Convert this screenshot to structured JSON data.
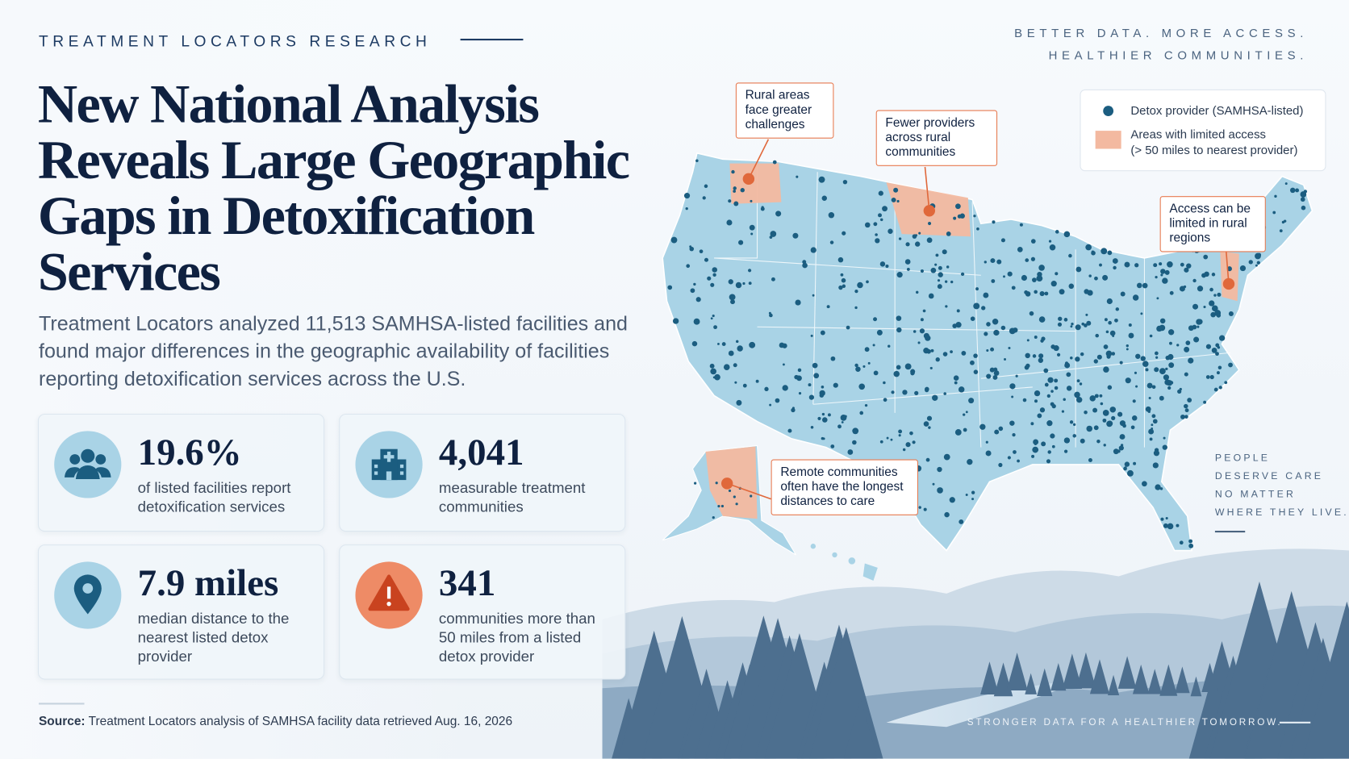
{
  "header": {
    "kicker": "TREATMENT LOCATORS RESEARCH",
    "tagline": [
      "BETTER DATA. MORE ACCESS.",
      "HEALTHIER COMMUNITIES."
    ],
    "title": "New National Analysis Reveals Large Geographic Gaps in Detoxification Services",
    "intro": "Treatment Locators analyzed 11,513 SAMHSA-listed facilities and found major differences in the geographic availability of facilities reporting detoxification services across the U.S."
  },
  "stats": [
    {
      "value": "19.6%",
      "label": "of listed facilities report detoxification services"
    },
    {
      "value": "4,041",
      "label": "measurable treatment communities"
    },
    {
      "value": "7.9 miles",
      "label": "median distance to the nearest listed detox provider"
    },
    {
      "value": "341",
      "label": "communities more than 50 miles from a listed detox provider"
    }
  ],
  "map": {
    "legend": {
      "provider": "Detox provider (SAMHSA-listed)",
      "limited": "Areas with limited access",
      "limited_note": "(> 50 miles to nearest provider)"
    },
    "callouts": [
      "Rural areas face greater challenges",
      "Fewer providers across rural communities",
      "Access can be limited in rural regions",
      "Remote communities often have the longest distances to care"
    ]
  },
  "side_note": [
    "PEOPLE",
    "DESERVE CARE",
    "NO MATTER",
    "WHERE THEY LIVE."
  ],
  "footer": {
    "source_label": "Source:",
    "source_text": "Treatment Locators analysis of SAMHSA facility data retrieved Aug. 16, 2026",
    "slogan": "STRONGER DATA FOR A HEALTHIER TOMORROW."
  }
}
